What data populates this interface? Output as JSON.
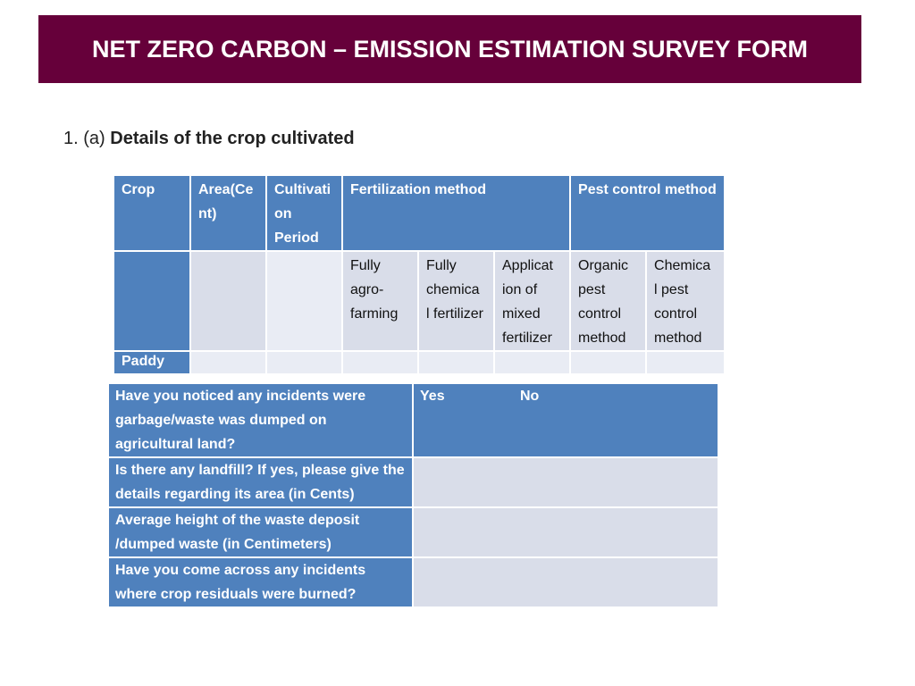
{
  "title": "NET ZERO CARBON – EMISSION ESTIMATION SURVEY FORM",
  "section": {
    "number": "1. (a) ",
    "label": "Details of the crop cultivated"
  },
  "crop_table": {
    "headers": {
      "crop": "Crop",
      "area": "Area(Ce nt)",
      "cultivation": "Cultivati on Period",
      "fertilization": "Fertilization method",
      "pest": "Pest control method"
    },
    "fert_sub": [
      "Fully agro-farming",
      "Fully chemica l fertilizer",
      "Applicat ion of mixed fertilizer"
    ],
    "pest_sub": [
      "Organic pest control method",
      "Chemica l pest control method"
    ],
    "rows": [
      {
        "crop": "Paddy"
      }
    ]
  },
  "incident_table": {
    "answer_header": {
      "yes": "Yes",
      "no": "No"
    },
    "questions": [
      "Have you noticed any incidents were garbage/waste was dumped on agricultural land?",
      "Is there any landfill? If yes, please give the details regarding its area (in Cents)",
      "Average height of  the waste deposit /dumped waste (in Centimeters)",
      "Have you come across any incidents where crop residuals were burned?"
    ]
  }
}
